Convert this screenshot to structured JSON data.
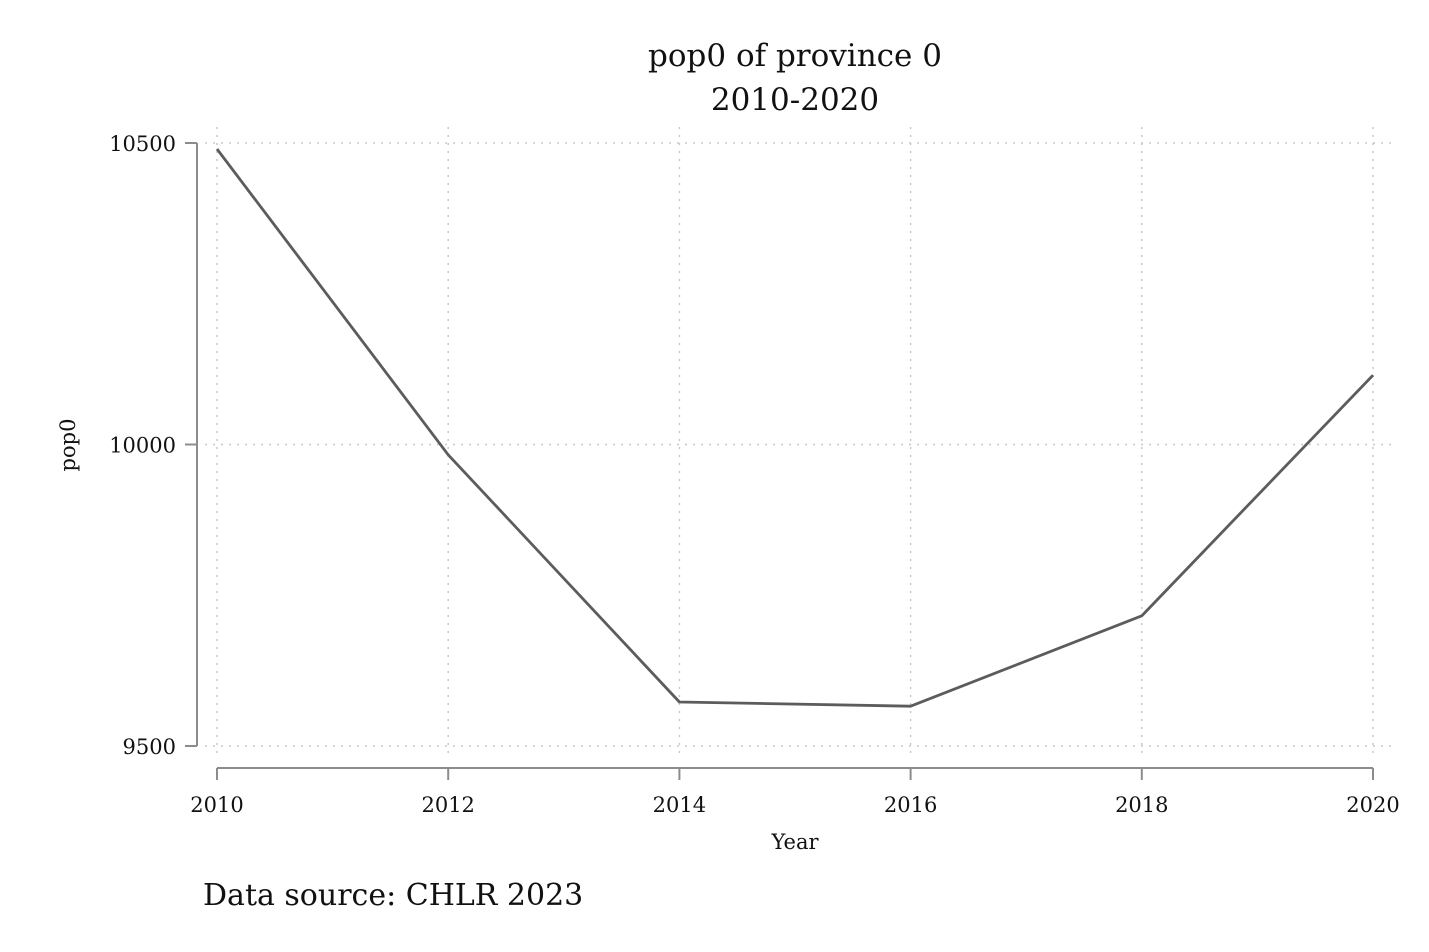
{
  "chart_data": {
    "type": "line",
    "title": "pop0 of province 0",
    "subtitle": "2010-2020",
    "xlabel": "Year",
    "ylabel": "pop0",
    "x": [
      2010,
      2012,
      2014,
      2016,
      2018,
      2020
    ],
    "xticks": [
      2010,
      2012,
      2014,
      2016,
      2018,
      2020
    ],
    "yticks": [
      9500,
      10000,
      10500
    ],
    "xlim": [
      2010,
      2020
    ],
    "ylim": [
      9500,
      10500
    ],
    "grid": true,
    "series": [
      {
        "values": [
          10490,
          9983,
          9573,
          9566,
          9716,
          10115
        ],
        "color": "#5c5c5c"
      }
    ],
    "note": "Data source: CHLR 2023"
  }
}
